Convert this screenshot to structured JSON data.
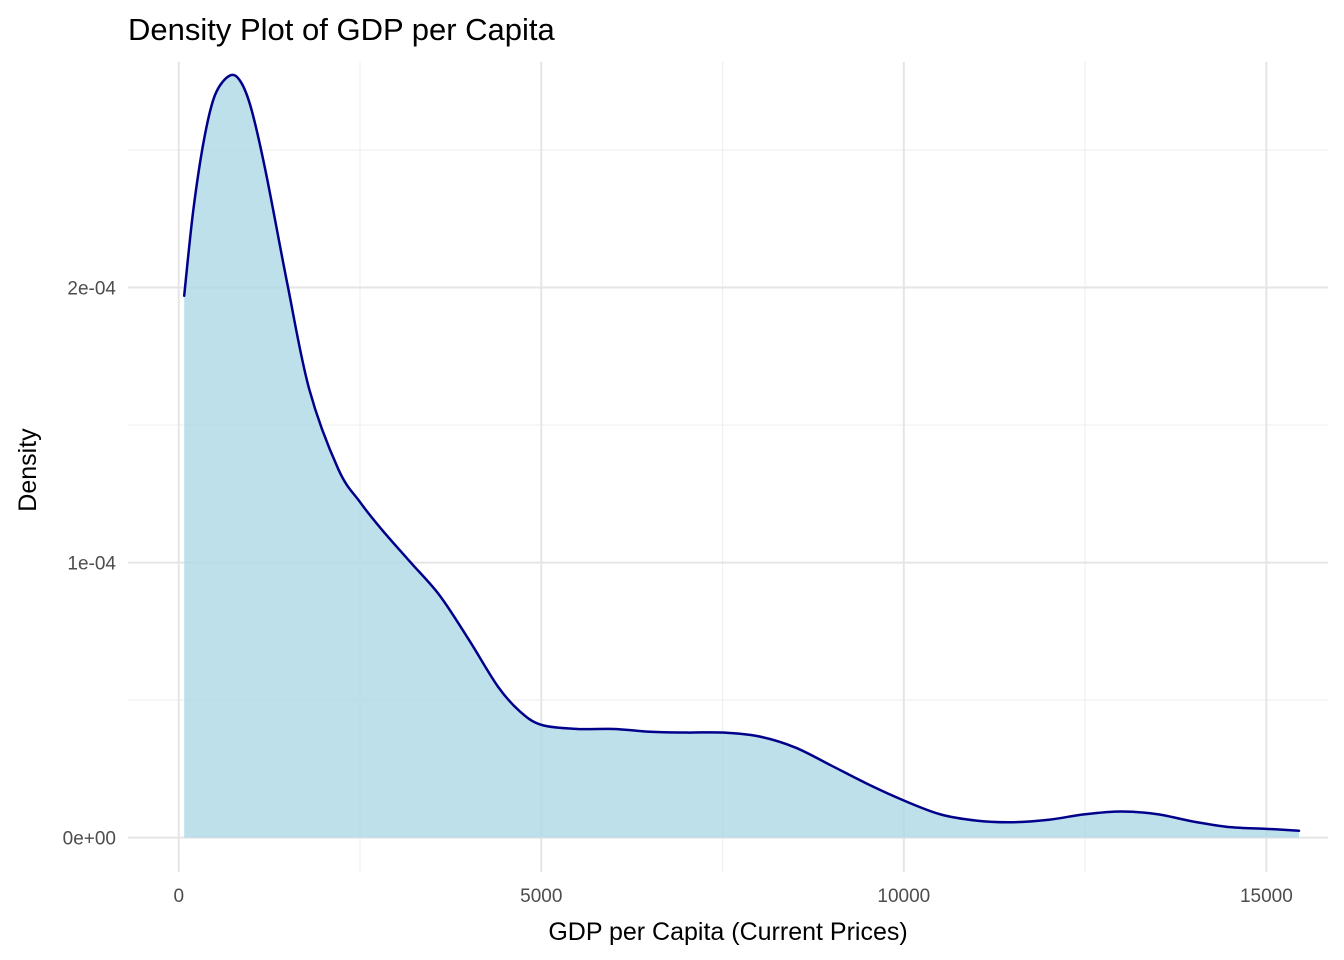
{
  "chart_data": {
    "type": "area",
    "title": "Density Plot of GDP per Capita",
    "xlabel": "GDP per Capita (Current Prices)",
    "ylabel": "Density",
    "xlim": [
      -700,
      15850
    ],
    "ylim": [
      -1.25e-05,
      0.000282
    ],
    "x_ticks": [
      {
        "value": 0,
        "label": "0"
      },
      {
        "value": 5000,
        "label": "5000"
      },
      {
        "value": 10000,
        "label": "10000"
      },
      {
        "value": 15000,
        "label": "15000"
      }
    ],
    "y_ticks": [
      {
        "value": 0,
        "label": "0e+00"
      },
      {
        "value": 0.0001,
        "label": "1e-04"
      },
      {
        "value": 0.0002,
        "label": "2e-04"
      }
    ],
    "x_minor": [
      2500,
      7500,
      12500
    ],
    "y_minor": [
      5e-05,
      0.00015,
      0.00025
    ],
    "grid": true,
    "fill_color": "#add8e6",
    "fill_opacity": 0.8,
    "line_color": "#00008b",
    "points": [
      {
        "x": 75,
        "y": 0.000197
      },
      {
        "x": 200,
        "y": 0.000228
      },
      {
        "x": 350,
        "y": 0.000254
      },
      {
        "x": 500,
        "y": 0.00027
      },
      {
        "x": 700,
        "y": 0.000277
      },
      {
        "x": 850,
        "y": 0.000275
      },
      {
        "x": 1000,
        "y": 0.000265
      },
      {
        "x": 1200,
        "y": 0.000242
      },
      {
        "x": 1500,
        "y": 0.000201
      },
      {
        "x": 1800,
        "y": 0.000163
      },
      {
        "x": 2200,
        "y": 0.000134
      },
      {
        "x": 2500,
        "y": 0.000122
      },
      {
        "x": 2800,
        "y": 0.000112
      },
      {
        "x": 3200,
        "y": 0.0001
      },
      {
        "x": 3600,
        "y": 8.8e-05
      },
      {
        "x": 4000,
        "y": 7.2e-05
      },
      {
        "x": 4400,
        "y": 5.5e-05
      },
      {
        "x": 4700,
        "y": 4.6e-05
      },
      {
        "x": 5000,
        "y": 4.1e-05
      },
      {
        "x": 5500,
        "y": 3.95e-05
      },
      {
        "x": 6000,
        "y": 3.95e-05
      },
      {
        "x": 6500,
        "y": 3.85e-05
      },
      {
        "x": 7000,
        "y": 3.82e-05
      },
      {
        "x": 7500,
        "y": 3.82e-05
      },
      {
        "x": 8000,
        "y": 3.68e-05
      },
      {
        "x": 8500,
        "y": 3.28e-05
      },
      {
        "x": 9000,
        "y": 2.62e-05
      },
      {
        "x": 9500,
        "y": 1.95e-05
      },
      {
        "x": 10000,
        "y": 1.35e-05
      },
      {
        "x": 10500,
        "y": 8.5e-06
      },
      {
        "x": 11000,
        "y": 6.2e-06
      },
      {
        "x": 11500,
        "y": 5.6e-06
      },
      {
        "x": 12000,
        "y": 6.5e-06
      },
      {
        "x": 12500,
        "y": 8.5e-06
      },
      {
        "x": 13000,
        "y": 9.5e-06
      },
      {
        "x": 13500,
        "y": 8.5e-06
      },
      {
        "x": 14000,
        "y": 5.8e-06
      },
      {
        "x": 14500,
        "y": 3.8e-06
      },
      {
        "x": 15000,
        "y": 3.2e-06
      },
      {
        "x": 15450,
        "y": 2.5e-06
      }
    ]
  }
}
